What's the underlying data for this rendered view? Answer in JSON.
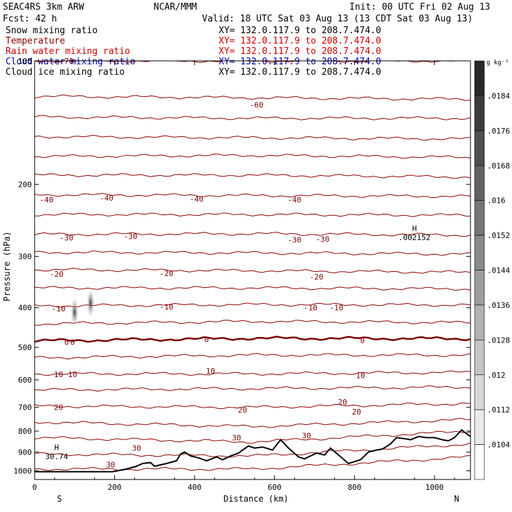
{
  "header": {
    "model": "SEAC4RS  3km ARW",
    "org": "NCAR/MMM",
    "init": "Init: 00 UTC Fri 02 Aug 13",
    "fcst": "Fcst:   42 h",
    "valid": "Valid: 18 UTC Sat 03 Aug 13 (13 CDT Sat 03 Aug 13)",
    "fields": [
      {
        "name": "Snow mixing ratio",
        "color": "#000000",
        "xy": "XY= 132.0.117.9 to 208.7.474.0",
        "xy_color": "#000000"
      },
      {
        "name": "Temperature",
        "color": "#8b0000",
        "xy": "XY= 132.0.117.9 to 208.7.474.0",
        "xy_color": "#cc0000"
      },
      {
        "name": "Rain water mixing ratio",
        "color": "#cc0000",
        "xy": "XY= 132.0.117.9 to 208.7.474.0",
        "xy_color": "#cc0000"
      },
      {
        "name": "Cloud water mixing ratio",
        "color": "#0000aa",
        "xy": "XY= 132.0.117.9 to 208.7.474.0",
        "xy_color": "#0000aa"
      },
      {
        "name": "Cloud ice mixing ratio",
        "color": "#000000",
        "xy": "XY= 132.0.117.9 to 208.7.474.0",
        "xy_color": "#000000"
      }
    ]
  },
  "colorbar": {
    "unit": "g kg⁻¹",
    "labels": [
      ".0184",
      ".0176",
      ".0168",
      ".016",
      ".0152",
      ".0144",
      ".0136",
      ".0128",
      ".012",
      ".0112",
      ".0104"
    ]
  },
  "colors": {
    "isotherm": "#8b0000",
    "freezing_line": "#7a0000",
    "terrain": "#000000",
    "ice": "#555555"
  },
  "chart_data": {
    "type": "line",
    "title": "",
    "xlabel": "Distance (km)",
    "ylabel": "Pressure (hPa)",
    "xlim": [
      0,
      1090
    ],
    "ylim": [
      100,
      1050
    ],
    "y_scale": "log",
    "x_ticks": [
      0,
      200,
      400,
      600,
      800,
      1000
    ],
    "y_ticks": [
      100,
      200,
      300,
      400,
      500,
      600,
      700,
      800,
      900,
      1000
    ],
    "x_tick_labels": [
      "0",
      "200",
      "400",
      "600",
      "800",
      "1000"
    ],
    "y_tick_labels": [
      "100",
      "200",
      "300",
      "400",
      "500",
      "600",
      "700",
      "800",
      "900",
      "1000"
    ],
    "endpoints": {
      "left": "S",
      "right": "N"
    },
    "grid": false,
    "isotherms": [
      {
        "t": -70,
        "p": [
          100,
          100,
          100
        ]
      },
      {
        "t": -65,
        "p": [
          122,
          123,
          124
        ]
      },
      {
        "t": -60,
        "p": [
          137,
          138,
          138
        ]
      },
      {
        "t": -55,
        "p": [
          153,
          154,
          155
        ]
      },
      {
        "t": -50,
        "p": [
          171,
          170,
          172
        ]
      },
      {
        "t": -45,
        "p": [
          190,
          190,
          192
        ]
      },
      {
        "t": -40,
        "p": [
          212,
          213,
          214
        ]
      },
      {
        "t": -35,
        "p": [
          237,
          237,
          238
        ]
      },
      {
        "t": -30,
        "p": [
          265,
          264,
          266
        ]
      },
      {
        "t": -25,
        "p": [
          293,
          294,
          296
        ]
      },
      {
        "t": -20,
        "p": [
          323,
          325,
          328
        ]
      },
      {
        "t": -15,
        "p": [
          358,
          358,
          360
        ]
      },
      {
        "t": -10,
        "p": [
          396,
          393,
          394
        ]
      },
      {
        "t": -5,
        "p": [
          438,
          432,
          435
        ]
      },
      {
        "t": 0,
        "p": [
          482,
          475,
          476
        ]
      },
      {
        "t": 5,
        "p": [
          530,
          522,
          522
        ]
      },
      {
        "t": 10,
        "p": [
          580,
          580,
          575
        ]
      },
      {
        "t": 15,
        "p": [
          635,
          630,
          625
        ]
      },
      {
        "t": 20,
        "p": [
          695,
          700,
          685
        ]
      },
      {
        "t": 25,
        "p": [
          760,
          780,
          750
        ]
      },
      {
        "t": 30,
        "p": [
          830,
          850,
          800
        ]
      },
      {
        "t": 35,
        "p": [
          910,
          920,
          860
        ]
      },
      {
        "t": 40,
        "p": [
          990,
          990,
          925
        ]
      }
    ],
    "contour_labels": [
      {
        "x": 80,
        "p": 100,
        "text": "-70"
      },
      {
        "x": 555,
        "p": 128,
        "text": "-60"
      },
      {
        "x": 30,
        "p": 218,
        "text": "-40"
      },
      {
        "x": 180,
        "p": 216,
        "text": "-40"
      },
      {
        "x": 405,
        "p": 217,
        "text": "-40"
      },
      {
        "x": 650,
        "p": 218,
        "text": "-40"
      },
      {
        "x": 80,
        "p": 270,
        "text": "-30"
      },
      {
        "x": 240,
        "p": 268,
        "text": "-30"
      },
      {
        "x": 650,
        "p": 273,
        "text": "-30"
      },
      {
        "x": 720,
        "p": 272,
        "text": "-30"
      },
      {
        "x": 55,
        "p": 331,
        "text": "-20"
      },
      {
        "x": 330,
        "p": 330,
        "text": "-20"
      },
      {
        "x": 705,
        "p": 336,
        "text": "-20"
      },
      {
        "x": 60,
        "p": 402,
        "text": "-10"
      },
      {
        "x": 330,
        "p": 398,
        "text": "-10"
      },
      {
        "x": 690,
        "p": 400,
        "text": "-10"
      },
      {
        "x": 755,
        "p": 400,
        "text": "-10"
      },
      {
        "x": 80,
        "p": 485,
        "text": "0"
      },
      {
        "x": 95,
        "p": 485,
        "text": "0"
      },
      {
        "x": 430,
        "p": 478,
        "text": "0"
      },
      {
        "x": 820,
        "p": 481,
        "text": "0"
      },
      {
        "x": 60,
        "p": 582,
        "text": "10"
      },
      {
        "x": 95,
        "p": 582,
        "text": "10"
      },
      {
        "x": 440,
        "p": 570,
        "text": "10"
      },
      {
        "x": 815,
        "p": 585,
        "text": "10"
      },
      {
        "x": 60,
        "p": 700,
        "text": "20"
      },
      {
        "x": 520,
        "p": 710,
        "text": "20"
      },
      {
        "x": 770,
        "p": 680,
        "text": "20"
      },
      {
        "x": 805,
        "p": 718,
        "text": "20"
      },
      {
        "x": 505,
        "p": 830,
        "text": "30"
      },
      {
        "x": 680,
        "p": 820,
        "text": "30"
      },
      {
        "x": 255,
        "p": 880,
        "text": "30"
      },
      {
        "x": 190,
        "p": 965,
        "text": "30"
      }
    ],
    "extrema": [
      {
        "x": 950,
        "p": 260,
        "label": "H",
        "value": ".002152"
      },
      {
        "x": 55,
        "p": 890,
        "label": "H",
        "value": "30.74"
      }
    ],
    "terrain": {
      "x": [
        0,
        195,
        230,
        255,
        270,
        290,
        300,
        330,
        355,
        365,
        375,
        390,
        410,
        430,
        455,
        470,
        490,
        510,
        520,
        535,
        550,
        570,
        595,
        615,
        635,
        660,
        675,
        690,
        705,
        725,
        740,
        760,
        785,
        800,
        815,
        835,
        855,
        870,
        890,
        905,
        925,
        940,
        960,
        980,
        1000,
        1020,
        1035,
        1050,
        1060,
        1068,
        1075,
        1090
      ],
      "p": [
        1005,
        1005,
        990,
        975,
        960,
        955,
        975,
        960,
        945,
        910,
        900,
        920,
        930,
        945,
        925,
        940,
        920,
        905,
        890,
        870,
        880,
        875,
        890,
        840,
        880,
        925,
        935,
        920,
        905,
        915,
        880,
        915,
        960,
        950,
        940,
        900,
        890,
        885,
        860,
        830,
        835,
        840,
        825,
        830,
        830,
        840,
        845,
        830,
        810,
        795,
        805,
        825
      ]
    },
    "colorbar": {
      "levels": [
        0.0184,
        0.0176,
        0.0168,
        0.016,
        0.0152,
        0.0144,
        0.0136,
        0.0128,
        0.012,
        0.0112,
        0.0104
      ]
    },
    "ice_blobs": [
      {
        "x": 100,
        "p": 410
      },
      {
        "x": 140,
        "p": 390
      }
    ]
  }
}
